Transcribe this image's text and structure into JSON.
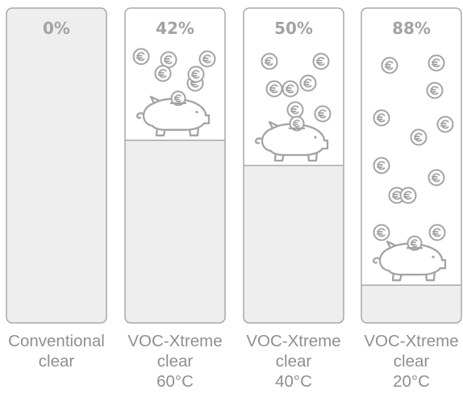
{
  "chart_data": {
    "type": "bar",
    "categories": [
      "Conventional\nclear",
      "VOC-Xtreme\nclear\n60°C",
      "VOC-Xtreme\nclear\n40°C",
      "VOC-Xtreme\nclear\n20°C"
    ],
    "values": [
      0,
      42,
      50,
      88
    ],
    "value_labels": [
      "0%",
      "42%",
      "50%",
      "88%"
    ],
    "unit": "%",
    "ylim": [
      0,
      100
    ],
    "coins_shown": [
      0,
      6,
      7,
      12
    ],
    "icons": [
      "euro-coin-icon",
      "piggy-bank-icon"
    ],
    "colors": {
      "column_fill": "#eeeeee",
      "column_border": "#a8a8a8",
      "saving_area": "#ffffff",
      "icon_stroke": "#a3a3a3",
      "value_text": "#a3a3a3",
      "label_text": "#8f8f8f"
    }
  }
}
